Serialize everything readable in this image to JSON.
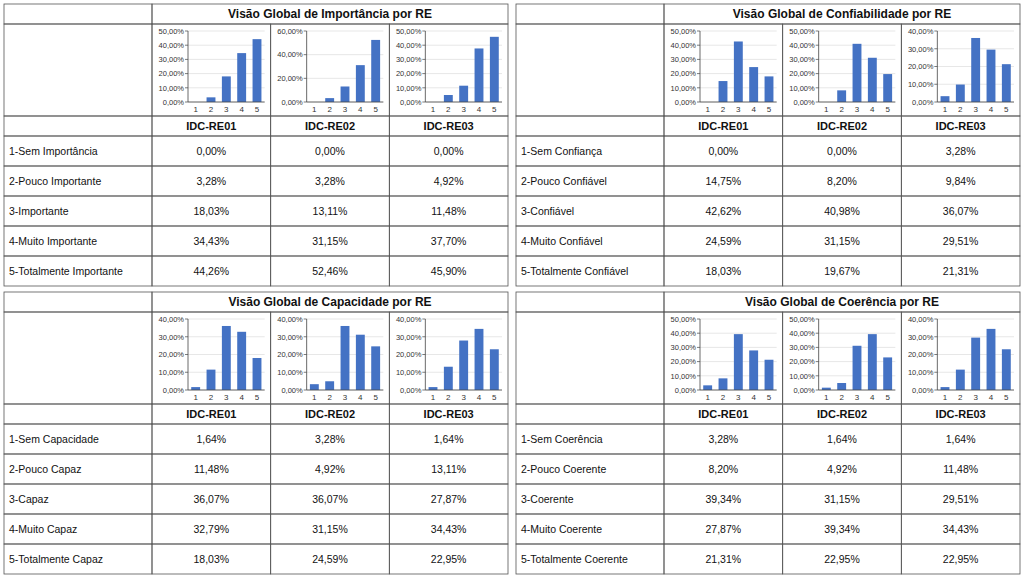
{
  "chart_data": [
    {
      "type": "bar",
      "title": "Visão Global de Importância por RE",
      "color": "#4472C4",
      "grid": true,
      "categories": [
        "1",
        "2",
        "3",
        "4",
        "5"
      ],
      "row_labels": [
        "1-Sem Importância",
        "2-Pouco Importante",
        "3-Importante",
        "4-Muito Importante",
        "5-Totalmente Importante"
      ],
      "series": [
        {
          "name": "IDC-RE01",
          "values": [
            0.0,
            3.28,
            18.03,
            34.43,
            44.26
          ],
          "value_labels": [
            "0,00%",
            "3,28%",
            "18,03%",
            "34,43%",
            "44,26%"
          ],
          "ylim": [
            0,
            50
          ],
          "yticks": [
            {
              "value": 0,
              "label": "0,00%"
            },
            {
              "value": 10,
              "label": "10,00%"
            },
            {
              "value": 20,
              "label": "20,00%"
            },
            {
              "value": 30,
              "label": "30,00%"
            },
            {
              "value": 40,
              "label": "40,00%"
            },
            {
              "value": 50,
              "label": "50,00%"
            }
          ]
        },
        {
          "name": "IDC-RE02",
          "values": [
            0.0,
            3.28,
            13.11,
            31.15,
            52.46
          ],
          "value_labels": [
            "0,00%",
            "3,28%",
            "13,11%",
            "31,15%",
            "52,46%"
          ],
          "ylim": [
            0,
            60
          ],
          "yticks": [
            {
              "value": 0,
              "label": "0,00%"
            },
            {
              "value": 20,
              "label": "20,00%"
            },
            {
              "value": 40,
              "label": "40,00%"
            },
            {
              "value": 60,
              "label": "60,00%"
            }
          ]
        },
        {
          "name": "IDC-RE03",
          "values": [
            0.0,
            4.92,
            11.48,
            37.7,
            45.9
          ],
          "value_labels": [
            "0,00%",
            "4,92%",
            "11,48%",
            "37,70%",
            "45,90%"
          ],
          "ylim": [
            0,
            50
          ],
          "yticks": [
            {
              "value": 0,
              "label": "0,00%"
            },
            {
              "value": 10,
              "label": "10,00%"
            },
            {
              "value": 20,
              "label": "20,00%"
            },
            {
              "value": 30,
              "label": "30,00%"
            },
            {
              "value": 40,
              "label": "40,00%"
            },
            {
              "value": 50,
              "label": "50,00%"
            }
          ]
        }
      ]
    },
    {
      "type": "bar",
      "title": "Visão Global de Confiabilidade por RE",
      "color": "#4472C4",
      "grid": true,
      "categories": [
        "1",
        "2",
        "3",
        "4",
        "5"
      ],
      "row_labels": [
        "1-Sem Confiança",
        "2-Pouco Confiável",
        "3-Confiável",
        "4-Muito Confiável",
        "5-Totalmente Confiável"
      ],
      "series": [
        {
          "name": "IDC-RE01",
          "values": [
            0.0,
            14.75,
            42.62,
            24.59,
            18.03
          ],
          "value_labels": [
            "0,00%",
            "14,75%",
            "42,62%",
            "24,59%",
            "18,03%"
          ],
          "ylim": [
            0,
            50
          ],
          "yticks": [
            {
              "value": 0,
              "label": "0,00%"
            },
            {
              "value": 10,
              "label": "10,00%"
            },
            {
              "value": 20,
              "label": "20,00%"
            },
            {
              "value": 30,
              "label": "30,00%"
            },
            {
              "value": 40,
              "label": "40,00%"
            },
            {
              "value": 50,
              "label": "50,00%"
            }
          ]
        },
        {
          "name": "IDC-RE02",
          "values": [
            0.0,
            8.2,
            40.98,
            31.15,
            19.67
          ],
          "value_labels": [
            "0,00%",
            "8,20%",
            "40,98%",
            "31,15%",
            "19,67%"
          ],
          "ylim": [
            0,
            50
          ],
          "yticks": [
            {
              "value": 0,
              "label": "0,00%"
            },
            {
              "value": 10,
              "label": "10,00%"
            },
            {
              "value": 20,
              "label": "20,00%"
            },
            {
              "value": 30,
              "label": "30,00%"
            },
            {
              "value": 40,
              "label": "40,00%"
            },
            {
              "value": 50,
              "label": "50,00%"
            }
          ]
        },
        {
          "name": "IDC-RE03",
          "values": [
            3.28,
            9.84,
            36.07,
            29.51,
            21.31
          ],
          "value_labels": [
            "3,28%",
            "9,84%",
            "36,07%",
            "29,51%",
            "21,31%"
          ],
          "ylim": [
            0,
            40
          ],
          "yticks": [
            {
              "value": 0,
              "label": "0,00%"
            },
            {
              "value": 10,
              "label": "10,00%"
            },
            {
              "value": 20,
              "label": "20,00%"
            },
            {
              "value": 30,
              "label": "30,00%"
            },
            {
              "value": 40,
              "label": "40,00%"
            }
          ]
        }
      ]
    },
    {
      "type": "bar",
      "title": "Visão Global de Capacidade por RE",
      "color": "#4472C4",
      "grid": true,
      "categories": [
        "1",
        "2",
        "3",
        "4",
        "5"
      ],
      "row_labels": [
        "1-Sem Capacidade",
        "2-Pouco Capaz",
        "3-Capaz",
        "4-Muito Capaz",
        "5-Totalmente Capaz"
      ],
      "series": [
        {
          "name": "IDC-RE01",
          "values": [
            1.64,
            11.48,
            36.07,
            32.79,
            18.03
          ],
          "value_labels": [
            "1,64%",
            "11,48%",
            "36,07%",
            "32,79%",
            "18,03%"
          ],
          "ylim": [
            0,
            40
          ],
          "yticks": [
            {
              "value": 0,
              "label": "0,00%"
            },
            {
              "value": 10,
              "label": "10,00%"
            },
            {
              "value": 20,
              "label": "20,00%"
            },
            {
              "value": 30,
              "label": "30,00%"
            },
            {
              "value": 40,
              "label": "40,00%"
            }
          ]
        },
        {
          "name": "IDC-RE02",
          "values": [
            3.28,
            4.92,
            36.07,
            31.15,
            24.59
          ],
          "value_labels": [
            "3,28%",
            "4,92%",
            "36,07%",
            "31,15%",
            "24,59%"
          ],
          "ylim": [
            0,
            40
          ],
          "yticks": [
            {
              "value": 0,
              "label": "0,00%"
            },
            {
              "value": 10,
              "label": "10,00%"
            },
            {
              "value": 20,
              "label": "20,00%"
            },
            {
              "value": 30,
              "label": "30,00%"
            },
            {
              "value": 40,
              "label": "40,00%"
            }
          ]
        },
        {
          "name": "IDC-RE03",
          "values": [
            1.64,
            13.11,
            27.87,
            34.43,
            22.95
          ],
          "value_labels": [
            "1,64%",
            "13,11%",
            "27,87%",
            "34,43%",
            "22,95%"
          ],
          "ylim": [
            0,
            40
          ],
          "yticks": [
            {
              "value": 0,
              "label": "0,00%"
            },
            {
              "value": 10,
              "label": "10,00%"
            },
            {
              "value": 20,
              "label": "20,00%"
            },
            {
              "value": 30,
              "label": "30,00%"
            },
            {
              "value": 40,
              "label": "40,00%"
            }
          ]
        }
      ]
    },
    {
      "type": "bar",
      "title": "Visão Global de Coerência por RE",
      "color": "#4472C4",
      "grid": true,
      "categories": [
        "1",
        "2",
        "3",
        "4",
        "5"
      ],
      "row_labels": [
        "1-Sem Coerência",
        "2-Pouco Coerente",
        "3-Coerente",
        "4-Muito Coerente",
        "5-Totalmente Coerente"
      ],
      "series": [
        {
          "name": "IDC-RE01",
          "values": [
            3.28,
            8.2,
            39.34,
            27.87,
            21.31
          ],
          "value_labels": [
            "3,28%",
            "8,20%",
            "39,34%",
            "27,87%",
            "21,31%"
          ],
          "ylim": [
            0,
            50
          ],
          "yticks": [
            {
              "value": 0,
              "label": "0,00%"
            },
            {
              "value": 10,
              "label": "10,00%"
            },
            {
              "value": 20,
              "label": "20,00%"
            },
            {
              "value": 30,
              "label": "30,00%"
            },
            {
              "value": 40,
              "label": "40,00%"
            },
            {
              "value": 50,
              "label": "50,00%"
            }
          ]
        },
        {
          "name": "IDC-RE02",
          "values": [
            1.64,
            4.92,
            31.15,
            39.34,
            22.95
          ],
          "value_labels": [
            "1,64%",
            "4,92%",
            "31,15%",
            "39,34%",
            "22,95%"
          ],
          "ylim": [
            0,
            50
          ],
          "yticks": [
            {
              "value": 0,
              "label": "0,00%"
            },
            {
              "value": 10,
              "label": "10,00%"
            },
            {
              "value": 20,
              "label": "20,00%"
            },
            {
              "value": 30,
              "label": "30,00%"
            },
            {
              "value": 40,
              "label": "40,00%"
            },
            {
              "value": 50,
              "label": "50,00%"
            }
          ]
        },
        {
          "name": "IDC-RE03",
          "values": [
            1.64,
            11.48,
            29.51,
            34.43,
            22.95
          ],
          "value_labels": [
            "1,64%",
            "11,48%",
            "29,51%",
            "34,43%",
            "22,95%"
          ],
          "ylim": [
            0,
            40
          ],
          "yticks": [
            {
              "value": 0,
              "label": "0,00%"
            },
            {
              "value": 10,
              "label": "10,00%"
            },
            {
              "value": 20,
              "label": "20,00%"
            },
            {
              "value": 30,
              "label": "30,00%"
            },
            {
              "value": 40,
              "label": "40,00%"
            }
          ]
        }
      ]
    }
  ]
}
